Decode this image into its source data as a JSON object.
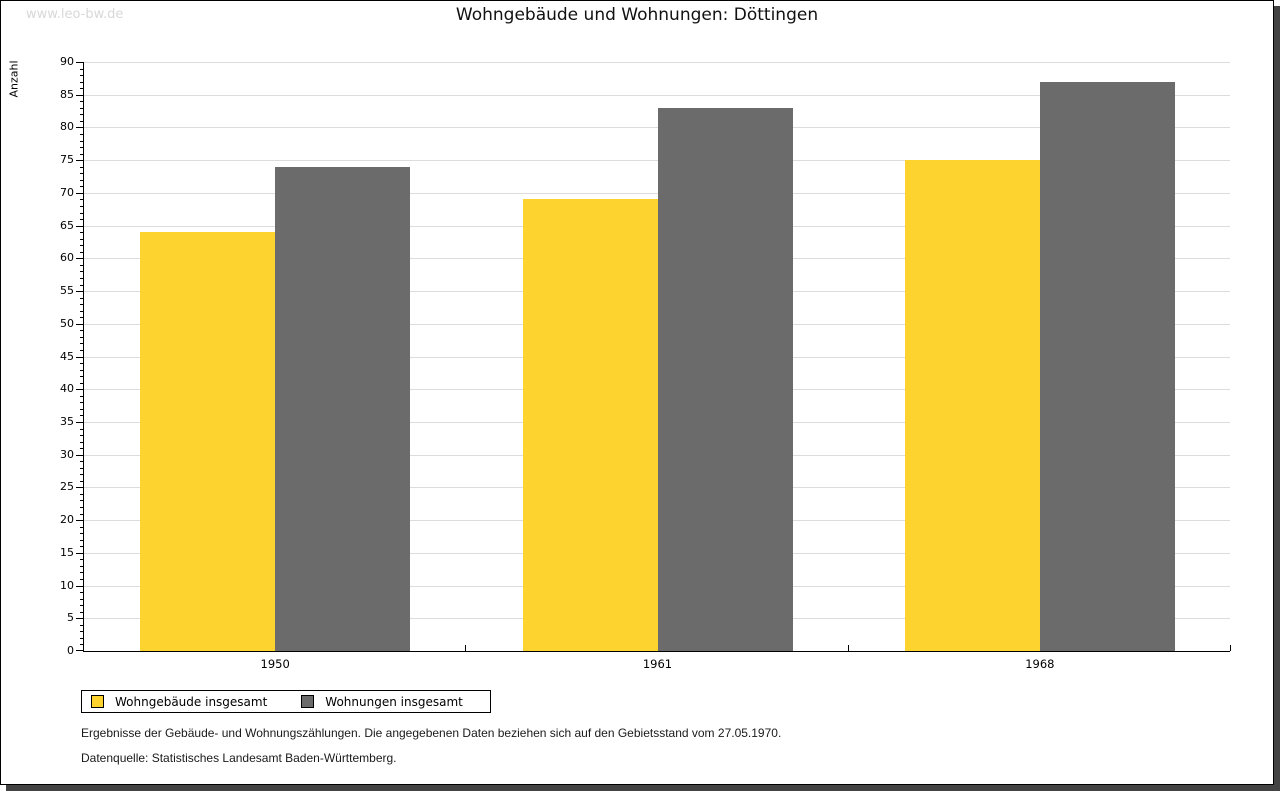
{
  "page": {
    "watermark": "www.leo-bw.de",
    "title": "Wohngebäude und Wohnungen: Döttingen"
  },
  "chart_data": {
    "type": "bar",
    "title": "Wohngebäude und Wohnungen: Döttingen",
    "xlabel": "",
    "ylabel": "Anzahl",
    "categories": [
      "1950",
      "1961",
      "1968"
    ],
    "series": [
      {
        "name": "Wohngebäude insgesamt",
        "color": "#FCD32F",
        "values": [
          64,
          69,
          75
        ]
      },
      {
        "name": "Wohnungen insgesamt",
        "color": "#6B6B6B",
        "values": [
          74,
          83,
          87
        ]
      }
    ],
    "ylim": [
      0,
      90
    ],
    "ytick_step": 5,
    "yminor_step": 1,
    "yticks": [
      0,
      5,
      10,
      15,
      20,
      25,
      30,
      35,
      40,
      45,
      50,
      55,
      60,
      65,
      70,
      75,
      80,
      85,
      90
    ],
    "grid": true,
    "gridline_color": "#dcdcdc",
    "legend_position": "bottom-left"
  },
  "footer": {
    "line1": "Ergebnisse der Gebäude- und Wohnungszählungen. Die angegebenen Daten beziehen sich auf den Gebietsstand vom 27.05.1970.",
    "line2": "Datenquelle: Statistisches Landesamt Baden-Württemberg."
  }
}
